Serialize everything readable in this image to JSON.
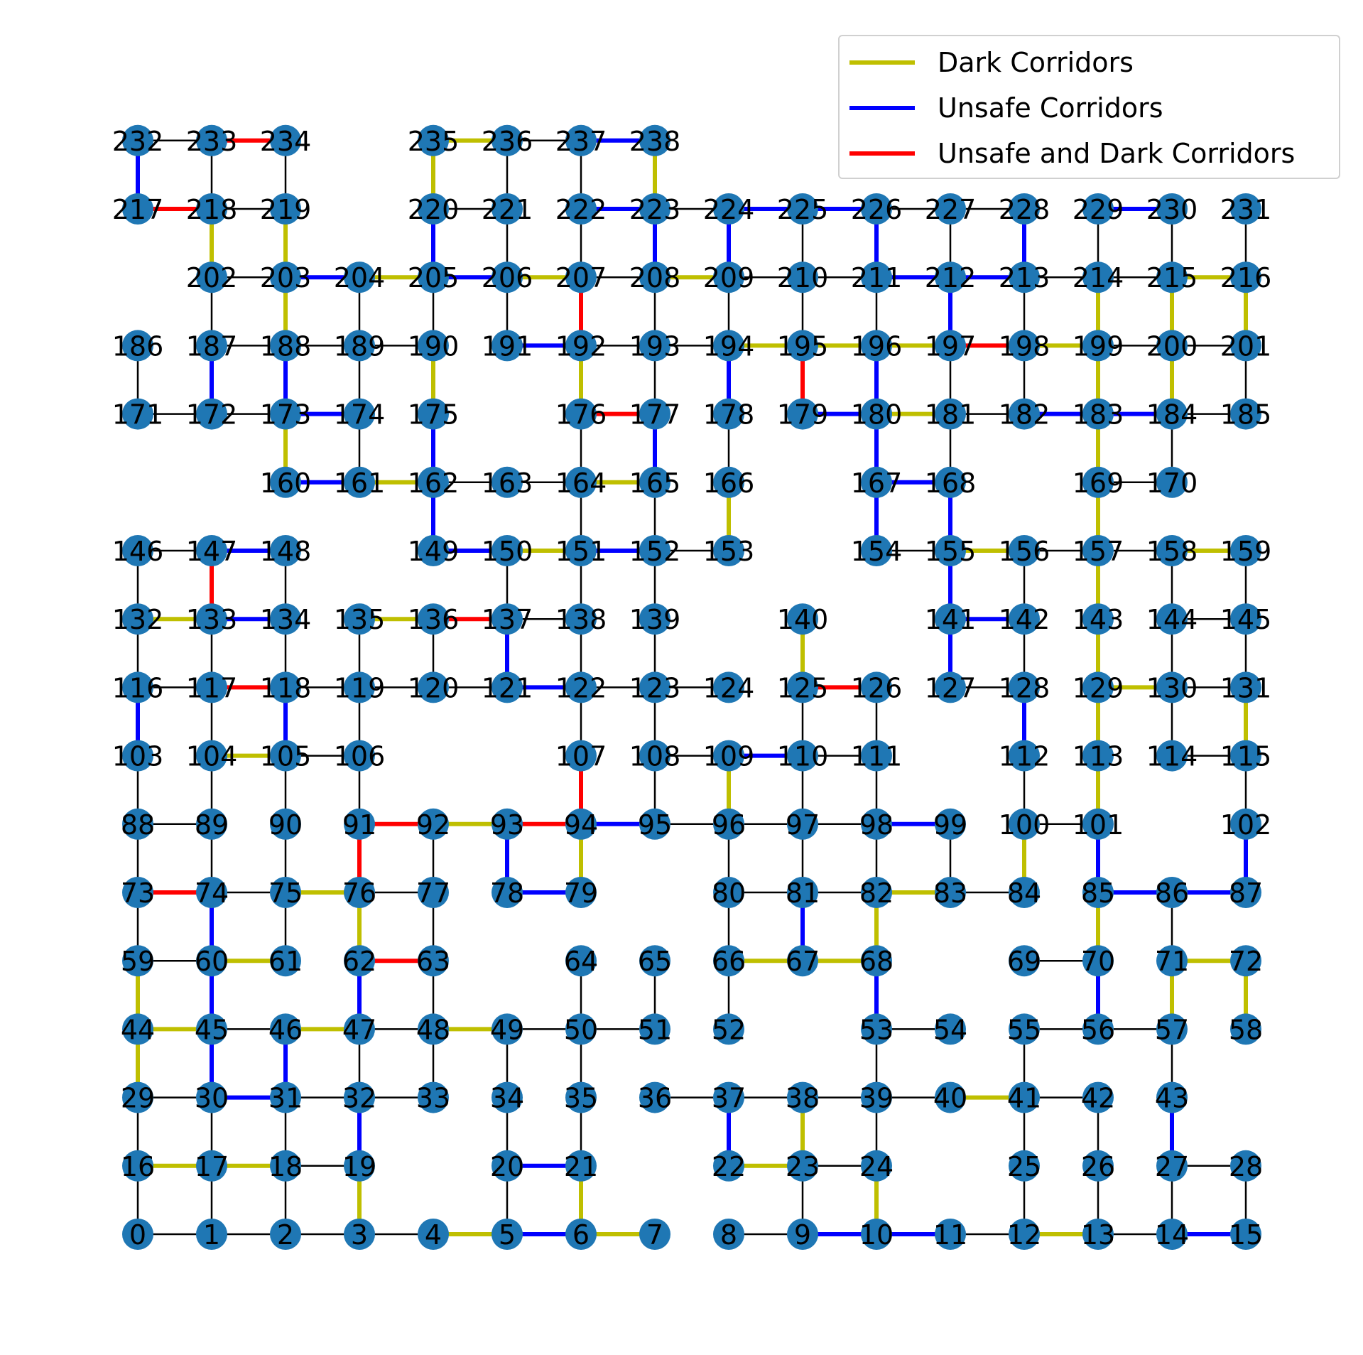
{
  "colors": {
    "plain": "#000000",
    "dark": "#bfbf00",
    "unsafe": "#0000ff",
    "both": "#ff0000",
    "node": "#1f77b4"
  },
  "legend": {
    "dark": "Dark Corridors",
    "unsafe": "Unsafe Corridors",
    "both": "Unsafe and Dark Corridors"
  },
  "rows": [
    [
      0,
      1,
      2,
      3,
      4,
      5,
      6,
      7,
      8,
      9,
      10,
      11,
      12,
      13,
      14,
      15
    ],
    [
      16,
      17,
      18,
      19,
      null,
      20,
      21,
      null,
      22,
      23,
      24,
      null,
      25,
      26,
      27,
      28
    ],
    [
      29,
      30,
      31,
      32,
      33,
      34,
      35,
      36,
      37,
      38,
      39,
      40,
      41,
      42,
      43,
      null
    ],
    [
      44,
      45,
      46,
      47,
      48,
      49,
      50,
      51,
      52,
      null,
      53,
      54,
      55,
      56,
      57,
      58
    ],
    [
      59,
      60,
      61,
      62,
      63,
      null,
      64,
      65,
      66,
      67,
      68,
      null,
      69,
      70,
      71,
      72
    ],
    [
      73,
      74,
      75,
      76,
      77,
      78,
      79,
      null,
      80,
      81,
      82,
      83,
      84,
      85,
      86,
      87
    ],
    [
      88,
      89,
      90,
      91,
      92,
      93,
      94,
      95,
      96,
      97,
      98,
      99,
      100,
      101,
      null,
      102
    ],
    [
      103,
      104,
      105,
      106,
      null,
      null,
      107,
      108,
      109,
      110,
      111,
      null,
      112,
      113,
      114,
      115
    ],
    [
      116,
      117,
      118,
      119,
      120,
      121,
      122,
      123,
      124,
      125,
      126,
      127,
      128,
      129,
      130,
      131
    ],
    [
      132,
      133,
      134,
      135,
      136,
      137,
      138,
      139,
      null,
      140,
      null,
      141,
      142,
      143,
      144,
      145
    ],
    [
      146,
      147,
      148,
      null,
      149,
      150,
      151,
      152,
      153,
      null,
      154,
      155,
      156,
      157,
      158,
      159
    ],
    [
      null,
      null,
      160,
      161,
      162,
      163,
      164,
      165,
      166,
      null,
      167,
      168,
      null,
      169,
      170,
      null
    ],
    [
      171,
      172,
      173,
      174,
      175,
      null,
      176,
      177,
      178,
      179,
      180,
      181,
      182,
      183,
      184,
      185
    ],
    [
      186,
      187,
      188,
      189,
      190,
      191,
      192,
      193,
      194,
      195,
      196,
      197,
      198,
      199,
      200,
      201
    ],
    [
      null,
      202,
      203,
      204,
      205,
      206,
      207,
      208,
      209,
      210,
      211,
      212,
      213,
      214,
      215,
      216
    ],
    [
      217,
      218,
      219,
      null,
      220,
      221,
      222,
      223,
      224,
      225,
      226,
      227,
      228,
      229,
      230,
      231
    ],
    [
      232,
      233,
      234,
      null,
      235,
      236,
      237,
      238,
      null,
      null,
      null,
      null,
      null,
      null,
      null,
      null
    ]
  ],
  "edges": [
    [
      0,
      1,
      "n"
    ],
    [
      1,
      2,
      "n"
    ],
    [
      2,
      3,
      "n"
    ],
    [
      3,
      4,
      "n"
    ],
    [
      4,
      5,
      "d"
    ],
    [
      5,
      6,
      "u"
    ],
    [
      6,
      7,
      "d"
    ],
    [
      8,
      9,
      "n"
    ],
    [
      9,
      10,
      "u"
    ],
    [
      10,
      11,
      "u"
    ],
    [
      11,
      12,
      "n"
    ],
    [
      12,
      13,
      "d"
    ],
    [
      13,
      14,
      "n"
    ],
    [
      14,
      15,
      "u"
    ],
    [
      16,
      17,
      "d"
    ],
    [
      17,
      18,
      "d"
    ],
    [
      18,
      19,
      "n"
    ],
    [
      20,
      21,
      "u"
    ],
    [
      22,
      23,
      "d"
    ],
    [
      23,
      24,
      "n"
    ],
    [
      27,
      28,
      "n"
    ],
    [
      29,
      30,
      "n"
    ],
    [
      30,
      31,
      "u"
    ],
    [
      31,
      32,
      "n"
    ],
    [
      32,
      33,
      "n"
    ],
    [
      36,
      37,
      "n"
    ],
    [
      37,
      38,
      "n"
    ],
    [
      38,
      39,
      "n"
    ],
    [
      39,
      40,
      "n"
    ],
    [
      40,
      41,
      "d"
    ],
    [
      41,
      42,
      "n"
    ],
    [
      44,
      45,
      "d"
    ],
    [
      45,
      46,
      "n"
    ],
    [
      46,
      47,
      "d"
    ],
    [
      47,
      48,
      "n"
    ],
    [
      48,
      49,
      "d"
    ],
    [
      49,
      50,
      "n"
    ],
    [
      50,
      51,
      "n"
    ],
    [
      53,
      54,
      "n"
    ],
    [
      55,
      56,
      "n"
    ],
    [
      56,
      57,
      "n"
    ],
    [
      59,
      60,
      "n"
    ],
    [
      60,
      61,
      "d"
    ],
    [
      62,
      63,
      "b"
    ],
    [
      66,
      67,
      "d"
    ],
    [
      67,
      68,
      "d"
    ],
    [
      69,
      70,
      "n"
    ],
    [
      71,
      72,
      "d"
    ],
    [
      73,
      74,
      "b"
    ],
    [
      74,
      75,
      "n"
    ],
    [
      75,
      76,
      "d"
    ],
    [
      76,
      77,
      "n"
    ],
    [
      78,
      79,
      "u"
    ],
    [
      80,
      81,
      "n"
    ],
    [
      81,
      82,
      "n"
    ],
    [
      82,
      83,
      "d"
    ],
    [
      83,
      84,
      "n"
    ],
    [
      85,
      86,
      "u"
    ],
    [
      86,
      87,
      "u"
    ],
    [
      88,
      89,
      "n"
    ],
    [
      91,
      92,
      "b"
    ],
    [
      92,
      93,
      "d"
    ],
    [
      93,
      94,
      "b"
    ],
    [
      94,
      95,
      "u"
    ],
    [
      95,
      96,
      "n"
    ],
    [
      96,
      97,
      "n"
    ],
    [
      97,
      98,
      "n"
    ],
    [
      98,
      99,
      "u"
    ],
    [
      100,
      101,
      "n"
    ],
    [
      104,
      105,
      "d"
    ],
    [
      105,
      106,
      "n"
    ],
    [
      108,
      109,
      "n"
    ],
    [
      109,
      110,
      "u"
    ],
    [
      110,
      111,
      "n"
    ],
    [
      114,
      115,
      "n"
    ],
    [
      116,
      117,
      "n"
    ],
    [
      117,
      118,
      "b"
    ],
    [
      118,
      119,
      "n"
    ],
    [
      119,
      120,
      "n"
    ],
    [
      120,
      121,
      "n"
    ],
    [
      121,
      122,
      "u"
    ],
    [
      122,
      123,
      "n"
    ],
    [
      123,
      124,
      "n"
    ],
    [
      125,
      126,
      "b"
    ],
    [
      127,
      128,
      "n"
    ],
    [
      129,
      130,
      "d"
    ],
    [
      130,
      131,
      "n"
    ],
    [
      132,
      133,
      "d"
    ],
    [
      133,
      134,
      "u"
    ],
    [
      135,
      136,
      "d"
    ],
    [
      136,
      137,
      "b"
    ],
    [
      137,
      138,
      "n"
    ],
    [
      141,
      142,
      "u"
    ],
    [
      144,
      145,
      "n"
    ],
    [
      146,
      147,
      "n"
    ],
    [
      147,
      148,
      "u"
    ],
    [
      149,
      150,
      "u"
    ],
    [
      150,
      151,
      "d"
    ],
    [
      151,
      152,
      "u"
    ],
    [
      152,
      153,
      "n"
    ],
    [
      154,
      155,
      "n"
    ],
    [
      155,
      156,
      "d"
    ],
    [
      156,
      157,
      "n"
    ],
    [
      157,
      158,
      "n"
    ],
    [
      158,
      159,
      "d"
    ],
    [
      160,
      161,
      "u"
    ],
    [
      161,
      162,
      "d"
    ],
    [
      162,
      163,
      "n"
    ],
    [
      163,
      164,
      "n"
    ],
    [
      164,
      165,
      "d"
    ],
    [
      167,
      168,
      "u"
    ],
    [
      169,
      170,
      "n"
    ],
    [
      171,
      172,
      "n"
    ],
    [
      172,
      173,
      "n"
    ],
    [
      173,
      174,
      "u"
    ],
    [
      176,
      177,
      "b"
    ],
    [
      179,
      180,
      "u"
    ],
    [
      180,
      181,
      "d"
    ],
    [
      181,
      182,
      "n"
    ],
    [
      182,
      183,
      "u"
    ],
    [
      183,
      184,
      "u"
    ],
    [
      184,
      185,
      "n"
    ],
    [
      187,
      188,
      "n"
    ],
    [
      188,
      189,
      "n"
    ],
    [
      189,
      190,
      "n"
    ],
    [
      191,
      192,
      "u"
    ],
    [
      192,
      193,
      "n"
    ],
    [
      193,
      194,
      "n"
    ],
    [
      194,
      195,
      "d"
    ],
    [
      195,
      196,
      "d"
    ],
    [
      196,
      197,
      "d"
    ],
    [
      197,
      198,
      "b"
    ],
    [
      198,
      199,
      "d"
    ],
    [
      199,
      200,
      "n"
    ],
    [
      200,
      201,
      "n"
    ],
    [
      202,
      203,
      "n"
    ],
    [
      203,
      204,
      "u"
    ],
    [
      204,
      205,
      "d"
    ],
    [
      205,
      206,
      "u"
    ],
    [
      206,
      207,
      "d"
    ],
    [
      207,
      208,
      "n"
    ],
    [
      208,
      209,
      "d"
    ],
    [
      209,
      210,
      "n"
    ],
    [
      210,
      211,
      "n"
    ],
    [
      211,
      212,
      "u"
    ],
    [
      212,
      213,
      "u"
    ],
    [
      213,
      214,
      "n"
    ],
    [
      214,
      215,
      "n"
    ],
    [
      215,
      216,
      "d"
    ],
    [
      217,
      218,
      "b"
    ],
    [
      218,
      219,
      "n"
    ],
    [
      220,
      221,
      "n"
    ],
    [
      222,
      223,
      "u"
    ],
    [
      223,
      224,
      "n"
    ],
    [
      224,
      225,
      "u"
    ],
    [
      225,
      226,
      "u"
    ],
    [
      226,
      227,
      "n"
    ],
    [
      227,
      228,
      "n"
    ],
    [
      229,
      230,
      "u"
    ],
    [
      232,
      233,
      "n"
    ],
    [
      233,
      234,
      "b"
    ],
    [
      235,
      236,
      "d"
    ],
    [
      236,
      237,
      "n"
    ],
    [
      237,
      238,
      "u"
    ],
    [
      0,
      16,
      "n"
    ],
    [
      1,
      17,
      "n"
    ],
    [
      2,
      18,
      "n"
    ],
    [
      3,
      19,
      "d"
    ],
    [
      5,
      20,
      "n"
    ],
    [
      6,
      21,
      "d"
    ],
    [
      9,
      23,
      "n"
    ],
    [
      10,
      24,
      "d"
    ],
    [
      12,
      25,
      "n"
    ],
    [
      13,
      26,
      "n"
    ],
    [
      14,
      27,
      "n"
    ],
    [
      15,
      28,
      "n"
    ],
    [
      16,
      29,
      "n"
    ],
    [
      17,
      30,
      "n"
    ],
    [
      18,
      31,
      "n"
    ],
    [
      19,
      32,
      "u"
    ],
    [
      20,
      34,
      "n"
    ],
    [
      21,
      35,
      "n"
    ],
    [
      22,
      37,
      "u"
    ],
    [
      23,
      38,
      "d"
    ],
    [
      24,
      39,
      "n"
    ],
    [
      25,
      41,
      "n"
    ],
    [
      26,
      42,
      "n"
    ],
    [
      27,
      43,
      "u"
    ],
    [
      29,
      44,
      "d"
    ],
    [
      30,
      45,
      "u"
    ],
    [
      31,
      46,
      "u"
    ],
    [
      32,
      47,
      "n"
    ],
    [
      33,
      48,
      "n"
    ],
    [
      34,
      49,
      "n"
    ],
    [
      35,
      50,
      "n"
    ],
    [
      39,
      53,
      "n"
    ],
    [
      41,
      55,
      "n"
    ],
    [
      43,
      57,
      "n"
    ],
    [
      44,
      59,
      "d"
    ],
    [
      45,
      60,
      "u"
    ],
    [
      47,
      62,
      "u"
    ],
    [
      48,
      63,
      "n"
    ],
    [
      50,
      64,
      "n"
    ],
    [
      51,
      65,
      "n"
    ],
    [
      52,
      66,
      "n"
    ],
    [
      53,
      68,
      "u"
    ],
    [
      56,
      70,
      "u"
    ],
    [
      57,
      71,
      "d"
    ],
    [
      58,
      72,
      "d"
    ],
    [
      59,
      73,
      "n"
    ],
    [
      60,
      74,
      "u"
    ],
    [
      61,
      75,
      "n"
    ],
    [
      62,
      76,
      "d"
    ],
    [
      63,
      77,
      "n"
    ],
    [
      66,
      80,
      "n"
    ],
    [
      67,
      81,
      "u"
    ],
    [
      68,
      82,
      "d"
    ],
    [
      70,
      85,
      "d"
    ],
    [
      71,
      86,
      "n"
    ],
    [
      73,
      88,
      "n"
    ],
    [
      74,
      89,
      "n"
    ],
    [
      75,
      90,
      "n"
    ],
    [
      76,
      91,
      "b"
    ],
    [
      77,
      92,
      "n"
    ],
    [
      78,
      93,
      "u"
    ],
    [
      79,
      94,
      "d"
    ],
    [
      80,
      96,
      "n"
    ],
    [
      81,
      97,
      "n"
    ],
    [
      82,
      98,
      "n"
    ],
    [
      83,
      99,
      "n"
    ],
    [
      84,
      100,
      "d"
    ],
    [
      85,
      101,
      "u"
    ],
    [
      87,
      102,
      "u"
    ],
    [
      88,
      103,
      "n"
    ],
    [
      89,
      104,
      "n"
    ],
    [
      90,
      105,
      "n"
    ],
    [
      91,
      106,
      "n"
    ],
    [
      94,
      107,
      "b"
    ],
    [
      95,
      108,
      "n"
    ],
    [
      96,
      109,
      "d"
    ],
    [
      97,
      110,
      "n"
    ],
    [
      98,
      111,
      "n"
    ],
    [
      100,
      112,
      "n"
    ],
    [
      101,
      113,
      "d"
    ],
    [
      102,
      115,
      "n"
    ],
    [
      103,
      116,
      "u"
    ],
    [
      104,
      117,
      "n"
    ],
    [
      105,
      118,
      "u"
    ],
    [
      106,
      119,
      "n"
    ],
    [
      107,
      122,
      "n"
    ],
    [
      108,
      123,
      "n"
    ],
    [
      110,
      125,
      "n"
    ],
    [
      111,
      126,
      "n"
    ],
    [
      112,
      128,
      "u"
    ],
    [
      113,
      129,
      "d"
    ],
    [
      114,
      130,
      "n"
    ],
    [
      115,
      131,
      "d"
    ],
    [
      116,
      132,
      "n"
    ],
    [
      117,
      133,
      "n"
    ],
    [
      118,
      134,
      "n"
    ],
    [
      119,
      135,
      "n"
    ],
    [
      120,
      136,
      "n"
    ],
    [
      121,
      137,
      "u"
    ],
    [
      122,
      138,
      "n"
    ],
    [
      123,
      139,
      "n"
    ],
    [
      125,
      140,
      "d"
    ],
    [
      127,
      141,
      "u"
    ],
    [
      128,
      142,
      "n"
    ],
    [
      129,
      143,
      "d"
    ],
    [
      130,
      144,
      "n"
    ],
    [
      131,
      145,
      "n"
    ],
    [
      132,
      146,
      "n"
    ],
    [
      133,
      147,
      "b"
    ],
    [
      134,
      148,
      "n"
    ],
    [
      137,
      150,
      "n"
    ],
    [
      138,
      151,
      "n"
    ],
    [
      139,
      152,
      "n"
    ],
    [
      141,
      155,
      "u"
    ],
    [
      142,
      156,
      "n"
    ],
    [
      143,
      157,
      "d"
    ],
    [
      144,
      158,
      "n"
    ],
    [
      145,
      159,
      "n"
    ],
    [
      149,
      162,
      "u"
    ],
    [
      151,
      164,
      "n"
    ],
    [
      152,
      165,
      "n"
    ],
    [
      153,
      166,
      "d"
    ],
    [
      154,
      167,
      "u"
    ],
    [
      155,
      168,
      "u"
    ],
    [
      157,
      169,
      "d"
    ],
    [
      160,
      173,
      "d"
    ],
    [
      161,
      174,
      "n"
    ],
    [
      162,
      175,
      "u"
    ],
    [
      164,
      176,
      "n"
    ],
    [
      165,
      177,
      "u"
    ],
    [
      166,
      178,
      "n"
    ],
    [
      167,
      180,
      "u"
    ],
    [
      168,
      181,
      "n"
    ],
    [
      169,
      183,
      "d"
    ],
    [
      170,
      184,
      "n"
    ],
    [
      171,
      186,
      "n"
    ],
    [
      172,
      187,
      "u"
    ],
    [
      173,
      188,
      "u"
    ],
    [
      174,
      189,
      "n"
    ],
    [
      175,
      190,
      "d"
    ],
    [
      176,
      192,
      "d"
    ],
    [
      177,
      193,
      "n"
    ],
    [
      178,
      194,
      "u"
    ],
    [
      179,
      195,
      "b"
    ],
    [
      180,
      196,
      "u"
    ],
    [
      181,
      197,
      "n"
    ],
    [
      182,
      198,
      "n"
    ],
    [
      183,
      199,
      "d"
    ],
    [
      184,
      200,
      "d"
    ],
    [
      185,
      201,
      "n"
    ],
    [
      187,
      202,
      "n"
    ],
    [
      188,
      203,
      "d"
    ],
    [
      189,
      204,
      "n"
    ],
    [
      190,
      205,
      "n"
    ],
    [
      191,
      206,
      "n"
    ],
    [
      192,
      207,
      "b"
    ],
    [
      193,
      208,
      "n"
    ],
    [
      194,
      209,
      "n"
    ],
    [
      195,
      210,
      "n"
    ],
    [
      196,
      211,
      "n"
    ],
    [
      197,
      212,
      "u"
    ],
    [
      198,
      213,
      "n"
    ],
    [
      199,
      214,
      "d"
    ],
    [
      200,
      215,
      "d"
    ],
    [
      201,
      216,
      "d"
    ],
    [
      202,
      218,
      "d"
    ],
    [
      203,
      219,
      "d"
    ],
    [
      205,
      220,
      "u"
    ],
    [
      206,
      221,
      "n"
    ],
    [
      207,
      222,
      "n"
    ],
    [
      208,
      223,
      "u"
    ],
    [
      209,
      224,
      "u"
    ],
    [
      210,
      225,
      "n"
    ],
    [
      211,
      226,
      "u"
    ],
    [
      212,
      227,
      "n"
    ],
    [
      213,
      228,
      "u"
    ],
    [
      214,
      229,
      "n"
    ],
    [
      215,
      230,
      "n"
    ],
    [
      216,
      231,
      "n"
    ],
    [
      217,
      232,
      "u"
    ],
    [
      218,
      233,
      "n"
    ],
    [
      219,
      234,
      "n"
    ],
    [
      220,
      235,
      "d"
    ],
    [
      221,
      236,
      "n"
    ],
    [
      222,
      237,
      "n"
    ],
    [
      223,
      238,
      "d"
    ]
  ]
}
